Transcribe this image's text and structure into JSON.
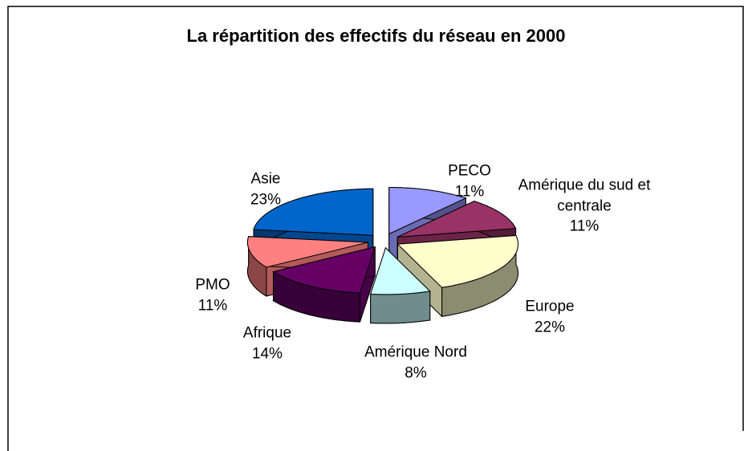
{
  "chart_data": {
    "type": "pie3d",
    "title": "La répartition des effectifs du réseau en 2000",
    "categories": [
      "PECO",
      "Amérique du sud et centrale",
      "Europe",
      "Amérique Nord",
      "Afrique",
      "PMO",
      "Asie"
    ],
    "values": [
      11,
      11,
      22,
      8,
      14,
      11,
      23
    ],
    "value_labels": [
      "11%",
      "11%",
      "22%",
      "8%",
      "14%",
      "11%",
      "23%"
    ],
    "colors": [
      "#9999ff",
      "#993366",
      "#ffffcc",
      "#ccffff",
      "#660066",
      "#ff8080",
      "#0066cc"
    ]
  }
}
